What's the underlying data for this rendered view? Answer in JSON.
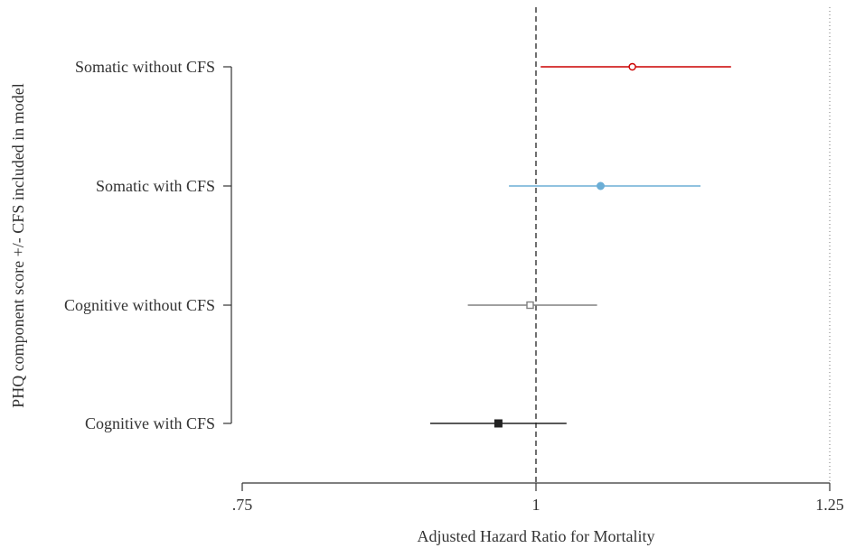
{
  "chart_data": {
    "type": "forest",
    "title": "",
    "xlabel": "Adjusted Hazard Ratio for Mortality",
    "ylabel": "PHQ component score +/- CFS included in model",
    "xlim": [
      0.75,
      1.25
    ],
    "x_ticks": [
      0.75,
      1,
      1.25
    ],
    "x_tick_labels": [
      ".75",
      "1",
      "1.25"
    ],
    "reference_line": 1,
    "grid": false,
    "categories": [
      "Somatic without CFS",
      "Somatic with CFS",
      "Cognitive without CFS",
      "Cognitive with CFS"
    ],
    "series": [
      {
        "category": "Somatic without CFS",
        "estimate": 1.082,
        "lower": 1.004,
        "upper": 1.166,
        "color": "#cc0000",
        "marker": "circle-open"
      },
      {
        "category": "Somatic with CFS",
        "estimate": 1.055,
        "lower": 0.977,
        "upper": 1.14,
        "color": "#6baed6",
        "marker": "circle-filled"
      },
      {
        "category": "Cognitive without CFS",
        "estimate": 0.995,
        "lower": 0.942,
        "upper": 1.052,
        "color": "#808080",
        "marker": "square-open"
      },
      {
        "category": "Cognitive with CFS",
        "estimate": 0.968,
        "lower": 0.91,
        "upper": 1.026,
        "color": "#222222",
        "marker": "square-filled"
      }
    ]
  }
}
